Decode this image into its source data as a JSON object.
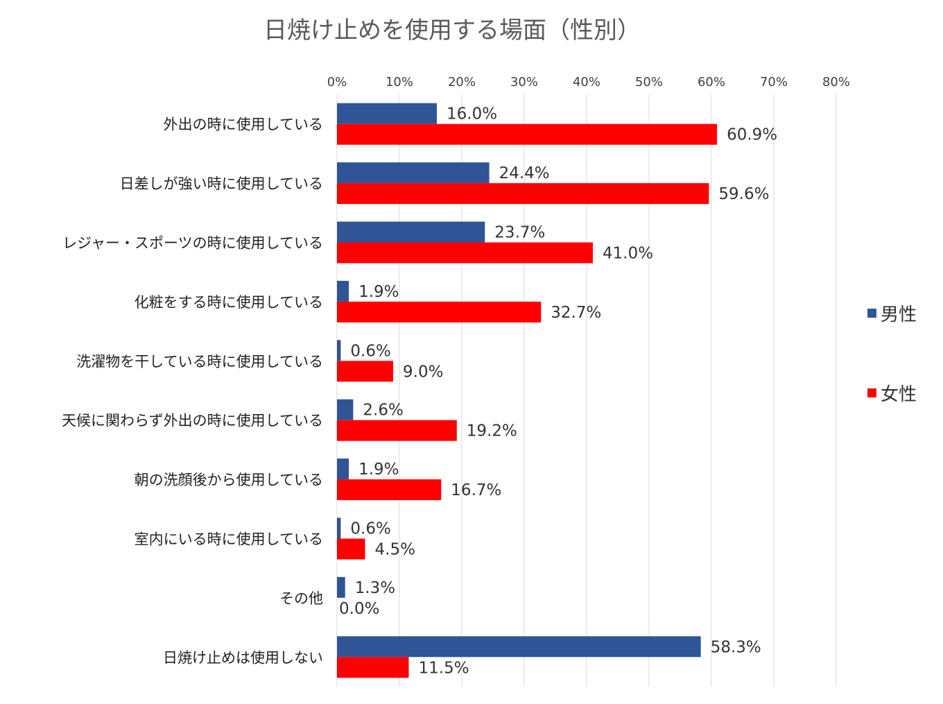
{
  "chart_data": {
    "type": "bar",
    "orientation": "horizontal",
    "title": "日焼け止めを使用する場面（性別）",
    "categories": [
      "外出の時に使用している",
      "日差しが強い時に使用している",
      "レジャー・スポーツの時に使用している",
      "化粧をする時に使用している",
      "洗濯物を干している時に使用している",
      "天候に関わらず外出の時に使用している",
      "朝の洗顔後から使用している",
      "室内にいる時に使用している",
      "その他",
      "日焼け止めは使用しない"
    ],
    "series": [
      {
        "name": "男性",
        "color": "#2f5597",
        "values": [
          16.0,
          24.4,
          23.7,
          1.9,
          0.6,
          2.6,
          1.9,
          0.6,
          1.3,
          58.3
        ],
        "labels": [
          "16.0%",
          "24.4%",
          "23.7%",
          "1.9%",
          "0.6%",
          "2.6%",
          "1.9%",
          "0.6%",
          "1.3%",
          "58.3%"
        ]
      },
      {
        "name": "女性",
        "color": "#ff0000",
        "values": [
          60.9,
          59.6,
          41.0,
          32.7,
          9.0,
          19.2,
          16.7,
          4.5,
          0.0,
          11.5
        ],
        "labels": [
          "60.9%",
          "59.6%",
          "41.0%",
          "32.7%",
          "9.0%",
          "19.2%",
          "16.7%",
          "4.5%",
          "0.0%",
          "11.5%"
        ]
      }
    ],
    "xlim": [
      0,
      80
    ],
    "xticks": [
      "0%",
      "10%",
      "20%",
      "30%",
      "40%",
      "50%",
      "60%",
      "70%",
      "80%"
    ],
    "grid": true,
    "x_axis_position": "top",
    "legend_position": "right"
  }
}
